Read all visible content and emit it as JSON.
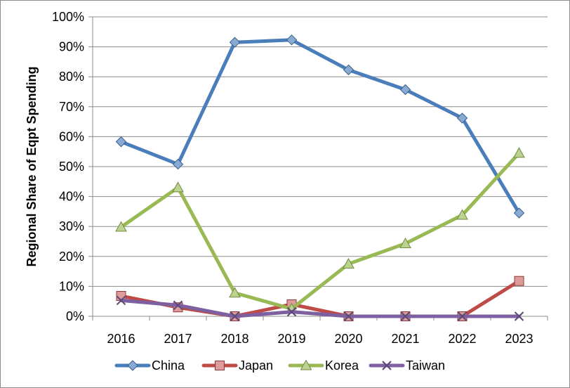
{
  "chart_data": {
    "type": "line",
    "title": "",
    "xlabel": "",
    "ylabel": "Regional Share of Eqpt Spending",
    "categories": [
      "2016",
      "2017",
      "2018",
      "2019",
      "2020",
      "2021",
      "2022",
      "2023"
    ],
    "ylim": [
      0,
      100
    ],
    "yticks": [
      "0%",
      "10%",
      "20%",
      "30%",
      "40%",
      "50%",
      "60%",
      "70%",
      "80%",
      "90%",
      "100%"
    ],
    "grid": true,
    "legend_position": "bottom",
    "series": [
      {
        "name": "China",
        "color": "#4a7ebb",
        "marker": "diamond",
        "values": [
          58.3,
          50.8,
          91.5,
          92.3,
          82.3,
          75.7,
          66.2,
          34.5
        ]
      },
      {
        "name": "Japan",
        "color": "#be4b48",
        "marker": "square",
        "values": [
          6.8,
          3.0,
          0.0,
          4.0,
          0.0,
          0.0,
          0.0,
          11.8
        ]
      },
      {
        "name": "Korea",
        "color": "#98b954",
        "marker": "triangle",
        "values": [
          29.8,
          43.0,
          7.8,
          2.5,
          17.5,
          24.3,
          33.8,
          54.5
        ]
      },
      {
        "name": "Taiwan",
        "color": "#7d60a0",
        "marker": "x",
        "values": [
          5.3,
          3.7,
          0.0,
          1.5,
          0.0,
          0.0,
          0.0,
          0.0
        ]
      }
    ]
  }
}
